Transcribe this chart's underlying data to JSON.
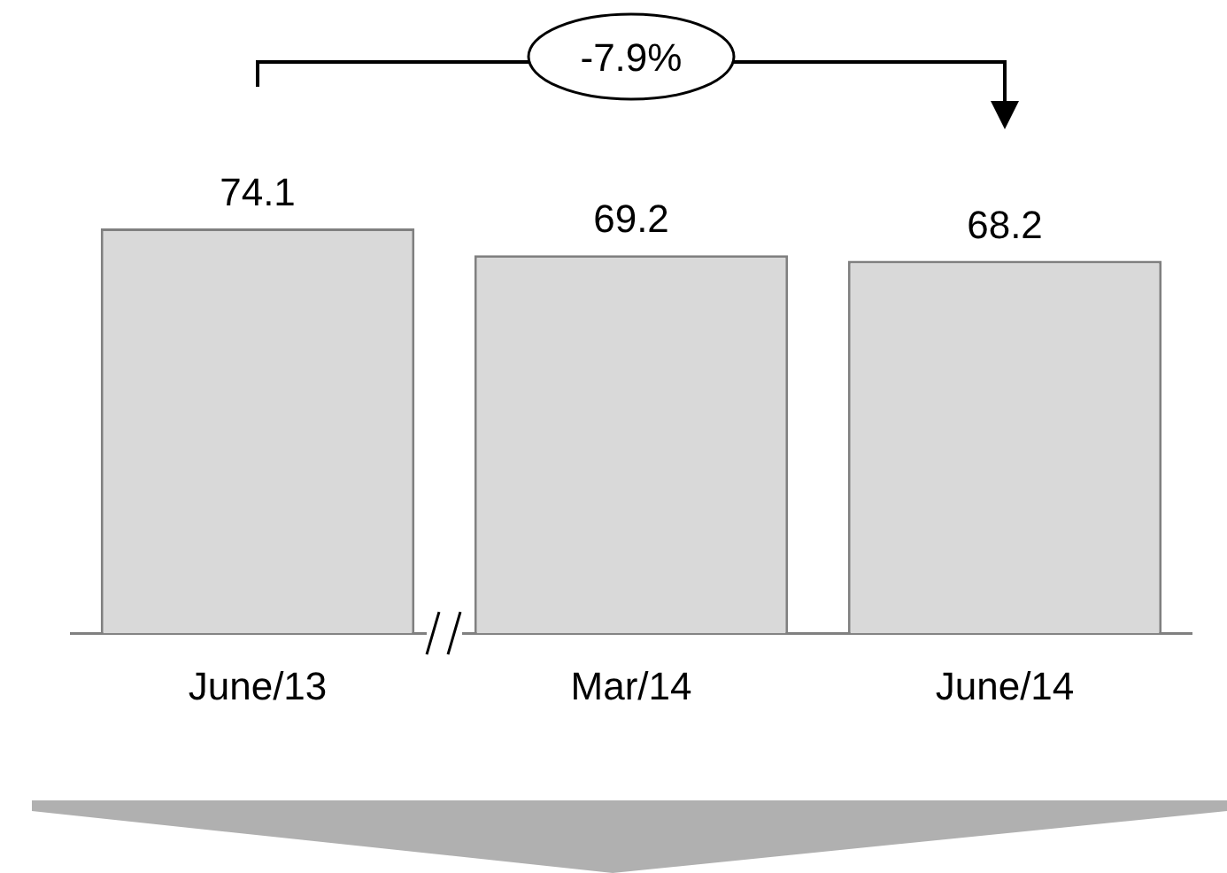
{
  "chart_data": {
    "type": "bar",
    "categories": [
      "June/13",
      "Mar/14",
      "June/14"
    ],
    "values": [
      74.1,
      69.2,
      68.2
    ],
    "color": "#d9d9d9",
    "data_labels": true,
    "grid": false,
    "legend": false,
    "tick_labels": "x",
    "annotations": [
      "-7.9%"
    ]
  }
}
